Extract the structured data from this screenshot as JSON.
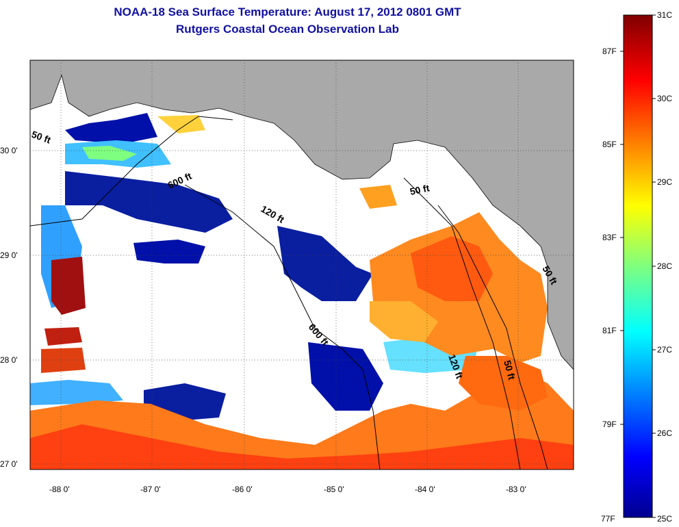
{
  "title": {
    "line1": "NOAA-18 Sea Surface Temperature:  August 17, 2012 0801 GMT",
    "line2": "Rutgers Coastal Ocean Observation Lab"
  },
  "axes": {
    "lon_ticks": [
      "-88 0'",
      "-87 0'",
      "-86 0'",
      "-85 0'",
      "-84 0'",
      "-83 0'"
    ],
    "lat_ticks": [
      "30 0'",
      "29 0'",
      "28 0'",
      "27 0'"
    ]
  },
  "contours": {
    "labels": [
      "50 ft",
      "600 ft",
      "120 ft",
      "600 ft",
      "50 ft",
      "120 ft",
      "50 ft",
      "50 ft"
    ]
  },
  "colorbar": {
    "celsius": [
      "31C",
      "30C",
      "29C",
      "28C",
      "27C",
      "26C",
      "25C"
    ],
    "fahrenheit": [
      "87F",
      "85F",
      "83F",
      "81F",
      "79F",
      "77F"
    ]
  },
  "colors": {
    "land": "#a9a9a9",
    "nodata": "#ffffff",
    "title": "#1010a0"
  }
}
